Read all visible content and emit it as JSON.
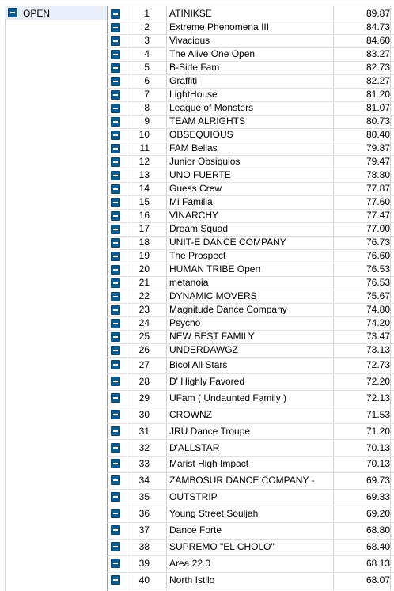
{
  "group": {
    "label": "OPEN"
  },
  "rows": [
    {
      "rank": "1",
      "team": "ATINIKSE",
      "score": "89.87"
    },
    {
      "rank": "2",
      "team": "Extreme Phenomena III",
      "score": "84.73"
    },
    {
      "rank": "3",
      "team": "Vivacious",
      "score": "84.60"
    },
    {
      "rank": "4",
      "team": "The Alive One Open",
      "score": "83.27"
    },
    {
      "rank": "5",
      "team": "B-Side Fam",
      "score": "82.73"
    },
    {
      "rank": "6",
      "team": "Graffiti",
      "score": "82.27"
    },
    {
      "rank": "7",
      "team": "LightHouse",
      "score": "81.20"
    },
    {
      "rank": "8",
      "team": "League of Monsters",
      "score": "81.07"
    },
    {
      "rank": "9",
      "team": "TEAM ALRIGHTS",
      "score": "80.73"
    },
    {
      "rank": "10",
      "team": "OBSEQUIOUS",
      "score": "80.40"
    },
    {
      "rank": "11",
      "team": "FAM Bellas",
      "score": "79.87"
    },
    {
      "rank": "12",
      "team": "Junior Obsiquios",
      "score": "79.47"
    },
    {
      "rank": "13",
      "team": "UNO FUERTE",
      "score": "78.80"
    },
    {
      "rank": "14",
      "team": "Guess Crew",
      "score": "77.87"
    },
    {
      "rank": "15",
      "team": "Mi Familia",
      "score": "77.60"
    },
    {
      "rank": "16",
      "team": "VINARCHY",
      "score": "77.47"
    },
    {
      "rank": "17",
      "team": "Dream Squad",
      "score": "77.00"
    },
    {
      "rank": "18",
      "team": "UNIT-E DANCE COMPANY",
      "score": "76.73"
    },
    {
      "rank": "19",
      "team": "The Prospect",
      "score": "76.60"
    },
    {
      "rank": "20",
      "team": "HUMAN TRIBE Open",
      "score": "76.53"
    },
    {
      "rank": "21",
      "team": "metanoia",
      "score": "76.53"
    },
    {
      "rank": "22",
      "team": "DYNAMIC MOVERS",
      "score": "75.67"
    },
    {
      "rank": "23",
      "team": "Magnitude Dance Company",
      "score": "74.80"
    },
    {
      "rank": "24",
      "team": "Psycho",
      "score": "74.20"
    },
    {
      "rank": "25",
      "team": "NEW BEST FAMILY",
      "score": "73.47"
    },
    {
      "rank": "26",
      "team": "UNDERDAWGZ",
      "score": "73.13"
    },
    {
      "rank": "27",
      "team": "Bicol All Stars",
      "score": "72.73"
    },
    {
      "rank": "28",
      "team": "D' Highly Favored",
      "score": "72.20"
    },
    {
      "rank": "29",
      "team": "UFam ( Undaunted Family )",
      "score": "72.13"
    },
    {
      "rank": "30",
      "team": "CROWNZ",
      "score": "71.53"
    },
    {
      "rank": "31",
      "team": "JRU Dance Troupe",
      "score": "71.20"
    },
    {
      "rank": "32",
      "team": "D'ALLSTAR",
      "score": "70.13"
    },
    {
      "rank": "33",
      "team": "Marist High Impact",
      "score": "70.13"
    },
    {
      "rank": "34",
      "team": "ZAMBOSUR DANCE COMPANY -",
      "score": "69.73"
    },
    {
      "rank": "35",
      "team": "OUTSTRIP",
      "score": "69.33"
    },
    {
      "rank": "36",
      "team": "Young Street Souljah",
      "score": "69.20"
    },
    {
      "rank": "37",
      "team": "Dance Forte",
      "score": "68.80"
    },
    {
      "rank": "38",
      "team": "SUPREMO \"EL CHOLO\"",
      "score": "68.40"
    },
    {
      "rank": "39",
      "team": "Area 22.0",
      "score": "68.13"
    },
    {
      "rank": "40",
      "team": "North Istilo",
      "score": "68.07"
    }
  ]
}
